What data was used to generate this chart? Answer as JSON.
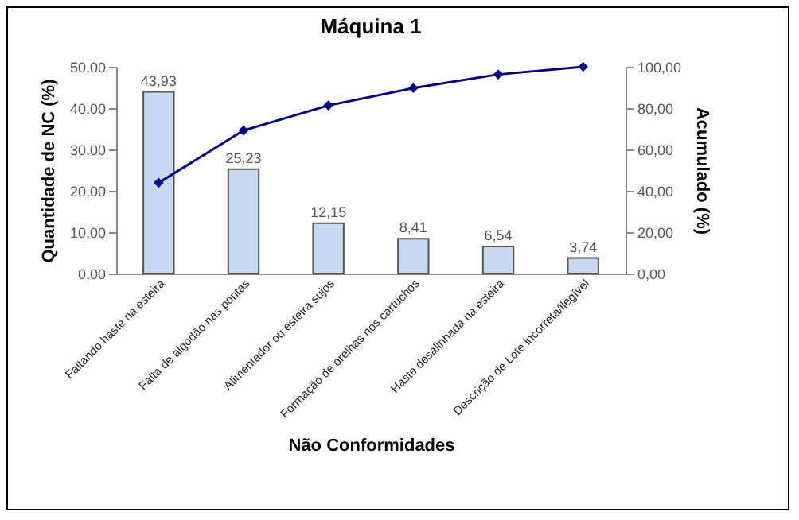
{
  "chart_data": {
    "type": "bar",
    "title": "Máquina 1",
    "xlabel": "Não Conformidades",
    "ylabel": "Quantidade de NC (%)",
    "y2label": "Acumulado (%)",
    "categories": [
      "Faltando haste na esteira",
      "Falta de algodão nas pontas",
      "Alimentador ou esteira sujos",
      "Formação de orelhas nos cartuchos",
      "Haste desalinhada na esteira",
      "Descrição de Lote incorreta/ilegível"
    ],
    "series": [
      {
        "color": "#c6d9f0",
        "values": [
          43.93,
          25.23,
          12.15,
          8.41,
          6.54,
          3.74
        ],
        "value_labels": [
          "43,93",
          "25,23",
          "12,15",
          "8,41",
          "6,54",
          "3,74"
        ]
      },
      {
        "type": "line",
        "axis": "y2",
        "color": "#000080",
        "marker": "diamond",
        "values": [
          43.9,
          69.2,
          81.3,
          89.7,
          96.3,
          100
        ]
      }
    ],
    "ylim": [
      0,
      50
    ],
    "yticks": [
      {
        "value": 0,
        "label": "0,00"
      },
      {
        "value": 10,
        "label": "10,00"
      },
      {
        "value": 20,
        "label": "20,00"
      },
      {
        "value": 30,
        "label": "30,00"
      },
      {
        "value": 40,
        "label": "40,00"
      },
      {
        "value": 50,
        "label": "50,00"
      }
    ],
    "y2lim": [
      0,
      100
    ],
    "y2ticks": [
      {
        "value": 0,
        "label": "0,00"
      },
      {
        "value": 20,
        "label": "20,00"
      },
      {
        "value": 40,
        "label": "40,00"
      },
      {
        "value": 60,
        "label": "60,00"
      },
      {
        "value": 80,
        "label": "80,00"
      },
      {
        "value": 100,
        "label": "100,00"
      }
    ],
    "grid": false
  }
}
